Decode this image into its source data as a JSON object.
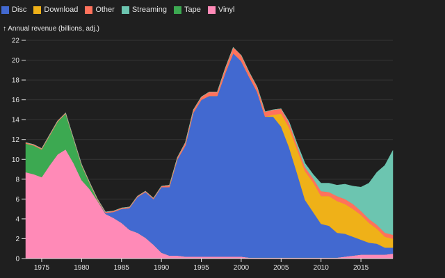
{
  "chart_data": {
    "type": "area",
    "stacked": true,
    "title": "",
    "ylabel": "↑ Annual revenue (billions, adj.)",
    "xlabel": "",
    "xlim": [
      1973,
      2019
    ],
    "ylim": [
      0,
      22
    ],
    "x_ticks": [
      1975,
      1980,
      1985,
      1990,
      1995,
      2000,
      2005,
      2010,
      2015
    ],
    "y_ticks": [
      0,
      2,
      4,
      6,
      8,
      10,
      12,
      14,
      16,
      18,
      20,
      22
    ],
    "grid": "horizontal",
    "legend_position": "top-left",
    "stack_order": [
      "Vinyl",
      "Tape",
      "Disc",
      "Download",
      "Other",
      "Streaming"
    ],
    "x": [
      1973,
      1974,
      1975,
      1976,
      1977,
      1978,
      1979,
      1980,
      1981,
      1982,
      1983,
      1984,
      1985,
      1986,
      1987,
      1988,
      1989,
      1990,
      1991,
      1992,
      1993,
      1994,
      1995,
      1996,
      1997,
      1998,
      1999,
      2000,
      2001,
      2002,
      2003,
      2004,
      2005,
      2006,
      2007,
      2008,
      2009,
      2010,
      2011,
      2012,
      2013,
      2014,
      2015,
      2016,
      2017,
      2018,
      2019
    ],
    "series": [
      {
        "name": "Disc",
        "color": "#4269d0",
        "values": [
          0,
          0,
          0,
          0,
          0,
          0,
          0,
          0,
          0,
          0,
          0.1,
          0.6,
          1.4,
          2.2,
          3.6,
          4.6,
          4.6,
          6.6,
          6.9,
          9.7,
          11.2,
          14.5,
          15.8,
          16.2,
          16.2,
          18.5,
          20.5,
          19.7,
          18.2,
          16.7,
          14.2,
          14.2,
          13.2,
          11.1,
          8.5,
          5.8,
          4.6,
          3.4,
          3.2,
          2.5,
          2.3,
          1.9,
          1.5,
          1.2,
          1.1,
          0.7,
          0.6
        ]
      },
      {
        "name": "Download",
        "color": "#efb118",
        "values": [
          0,
          0,
          0,
          0,
          0,
          0,
          0,
          0,
          0,
          0,
          0,
          0,
          0,
          0,
          0,
          0,
          0,
          0,
          0,
          0,
          0,
          0,
          0,
          0,
          0,
          0,
          0,
          0,
          0,
          0,
          0,
          0.2,
          1.3,
          2.0,
          2.4,
          2.9,
          3.0,
          2.8,
          3.0,
          3.2,
          3.0,
          2.8,
          2.5,
          2.0,
          1.5,
          1.1,
          0.9
        ]
      },
      {
        "name": "Other",
        "color": "#ff725c",
        "values": [
          0.1,
          0.1,
          0.1,
          0.1,
          0.1,
          0.1,
          0.1,
          0.1,
          0.1,
          0.1,
          0.1,
          0.1,
          0.1,
          0.1,
          0.1,
          0.1,
          0.1,
          0.1,
          0.2,
          0.2,
          0.3,
          0.3,
          0.3,
          0.4,
          0.4,
          0.5,
          0.6,
          0.6,
          0.5,
          0.5,
          0.5,
          0.5,
          0.5,
          0.5,
          0.4,
          0.4,
          0.4,
          0.5,
          0.4,
          0.5,
          0.5,
          0.5,
          0.4,
          0.4,
          0.4,
          0.4,
          0.4
        ]
      },
      {
        "name": "Streaming",
        "color": "#6cc5b0",
        "values": [
          0,
          0,
          0,
          0,
          0,
          0,
          0,
          0,
          0,
          0,
          0,
          0,
          0,
          0,
          0,
          0,
          0,
          0,
          0,
          0,
          0,
          0,
          0,
          0,
          0,
          0,
          0,
          0,
          0,
          0,
          0,
          0,
          0,
          0.1,
          0.2,
          0.4,
          0.4,
          0.8,
          0.9,
          1.1,
          1.5,
          1.8,
          2.4,
          3.6,
          5.3,
          6.8,
          8.5
        ]
      },
      {
        "name": "Tape",
        "color": "#3ca951",
        "values": [
          2.9,
          2.9,
          2.8,
          3.0,
          3.3,
          3.6,
          2.4,
          1.5,
          0.6,
          0.1,
          0,
          0,
          0,
          0,
          0,
          0,
          0,
          0,
          0,
          0,
          0,
          0,
          0,
          0,
          0,
          0,
          0,
          0,
          0,
          0,
          0,
          0,
          0,
          0,
          0,
          0,
          0,
          0,
          0,
          0,
          0,
          0,
          0,
          0,
          0,
          0,
          0
        ]
      },
      {
        "name": "Vinyl",
        "color": "#ff8ab7",
        "values": [
          8.7,
          8.5,
          8.2,
          9.4,
          10.5,
          11.0,
          9.6,
          7.9,
          7.0,
          5.8,
          4.5,
          4.1,
          3.6,
          2.9,
          2.6,
          2.1,
          1.4,
          0.6,
          0.3,
          0.3,
          0.2,
          0.2,
          0.2,
          0.2,
          0.2,
          0.2,
          0.2,
          0.2,
          0.1,
          0.1,
          0.1,
          0.1,
          0.1,
          0.1,
          0.1,
          0.1,
          0.1,
          0.1,
          0.1,
          0.1,
          0.2,
          0.3,
          0.4,
          0.4,
          0.4,
          0.4,
          0.5
        ]
      }
    ]
  }
}
